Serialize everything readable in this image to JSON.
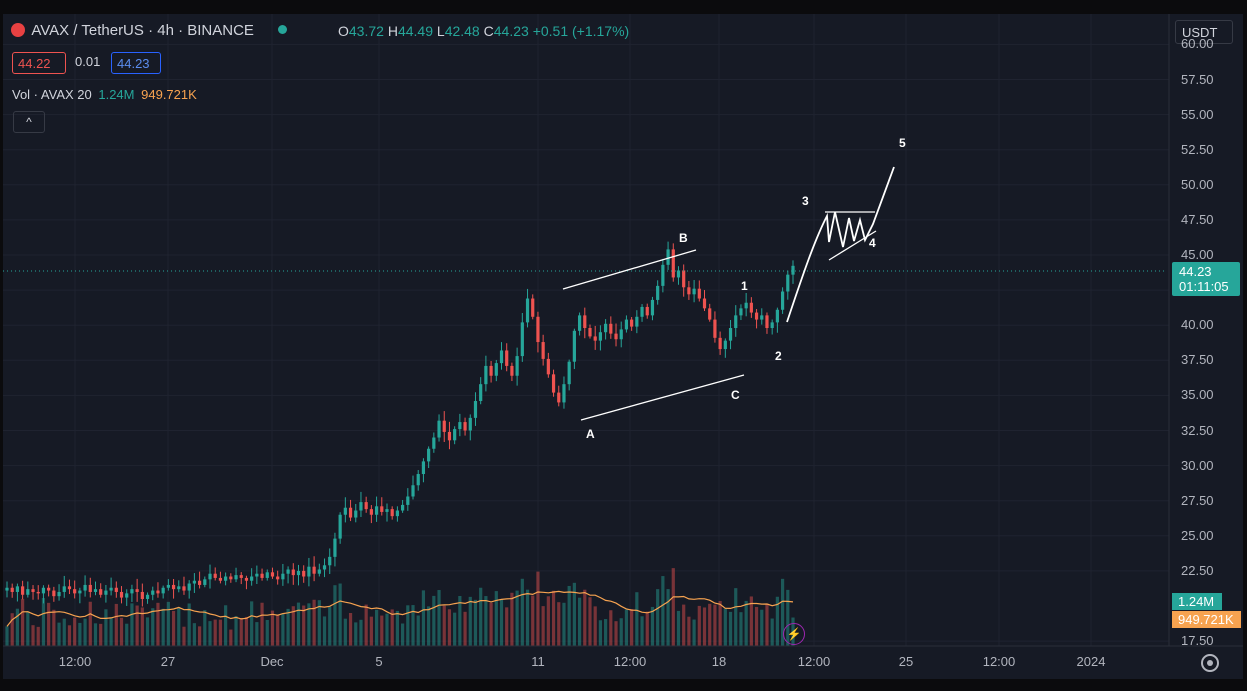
{
  "header": {
    "symbol": "AVAX / TetherUS · 4h · BINANCE",
    "o_label": "O",
    "o": "43.72",
    "h_label": "H",
    "h": "44.49",
    "l_label": "L",
    "l": "42.48",
    "c_label": "C",
    "c": "44.23",
    "change": "+0.51 (+1.17%)",
    "bid": "44.22",
    "spread": "0.01",
    "ask": "44.23",
    "vol_label": "Vol · AVAX 20",
    "vol_value": "1.24M",
    "vol_ma": "949.721K",
    "currency": "USDT"
  },
  "price_tag": {
    "price": "44.23",
    "countdown": "01:11:05"
  },
  "vol_tags": {
    "volume": "1.24M",
    "ma": "949.721K"
  },
  "colors": {
    "up": "#26a69a",
    "down": "#ef5350",
    "vol_ma": "#f7a350",
    "bg": "#161a25"
  },
  "chart_data": {
    "type": "candlestick",
    "interval": "4h",
    "y_ticks": [
      "60.00",
      "57.50",
      "55.00",
      "52.50",
      "50.00",
      "47.50",
      "45.00",
      "42.50",
      "40.00",
      "37.50",
      "35.00",
      "32.50",
      "30.00",
      "27.50",
      "25.00",
      "22.50",
      "17.50"
    ],
    "ylim": [
      17.5,
      60
    ],
    "x_ticks": [
      "12:00",
      "27",
      "Dec",
      "5",
      "11",
      "12:00",
      "18",
      "12:00",
      "25",
      "12:00",
      "2024"
    ],
    "last_price": 44.23,
    "close_series": [
      21.3,
      21.0,
      21.4,
      20.8,
      21.2,
      21.0,
      20.9,
      21.3,
      21.1,
      20.7,
      21.0,
      21.4,
      21.2,
      20.9,
      21.1,
      21.5,
      21.0,
      21.2,
      20.8,
      21.1,
      21.3,
      21.0,
      20.6,
      20.9,
      21.2,
      21.0,
      20.5,
      20.8,
      21.1,
      20.9,
      21.3,
      21.5,
      21.2,
      21.4,
      21.1,
      21.6,
      21.8,
      21.5,
      21.9,
      22.3,
      22.0,
      21.8,
      22.1,
      21.9,
      22.2,
      22.0,
      21.8,
      22.1,
      22.3,
      22.0,
      22.4,
      22.1,
      21.9,
      22.3,
      22.6,
      22.2,
      22.5,
      22.1,
      22.8,
      22.3,
      22.6,
      22.9,
      23.5,
      24.8,
      26.5,
      27.0,
      26.3,
      26.8,
      27.4,
      26.9,
      26.5,
      27.1,
      26.7,
      26.9,
      26.4,
      26.8,
      27.2,
      27.8,
      28.6,
      29.4,
      30.3,
      31.2,
      32.0,
      33.2,
      32.4,
      31.8,
      32.6,
      33.1,
      32.5,
      33.4,
      34.6,
      35.8,
      37.1,
      36.4,
      37.3,
      38.2,
      37.1,
      36.4,
      37.8,
      40.2,
      41.9,
      40.6,
      38.8,
      37.6,
      36.5,
      35.2,
      34.5,
      35.8,
      37.4,
      39.6,
      40.7,
      39.8,
      39.2,
      38.9,
      39.5,
      40.1,
      39.4,
      39.0,
      39.7,
      40.4,
      39.9,
      40.6,
      41.3,
      40.7,
      41.8,
      42.8,
      44.3,
      45.4,
      43.4,
      43.9,
      42.7,
      42.2,
      42.6,
      41.9,
      41.2,
      40.4,
      39.1,
      38.3,
      38.9,
      39.8,
      40.7,
      41.2,
      41.6,
      40.9,
      40.4,
      40.7,
      39.8,
      40.2,
      41.1,
      42.4,
      43.6,
      44.23
    ],
    "volume_ma_label": "949.721K",
    "wave_labels": [
      "A",
      "B",
      "C",
      "1",
      "2",
      "3",
      "4",
      "5"
    ]
  }
}
